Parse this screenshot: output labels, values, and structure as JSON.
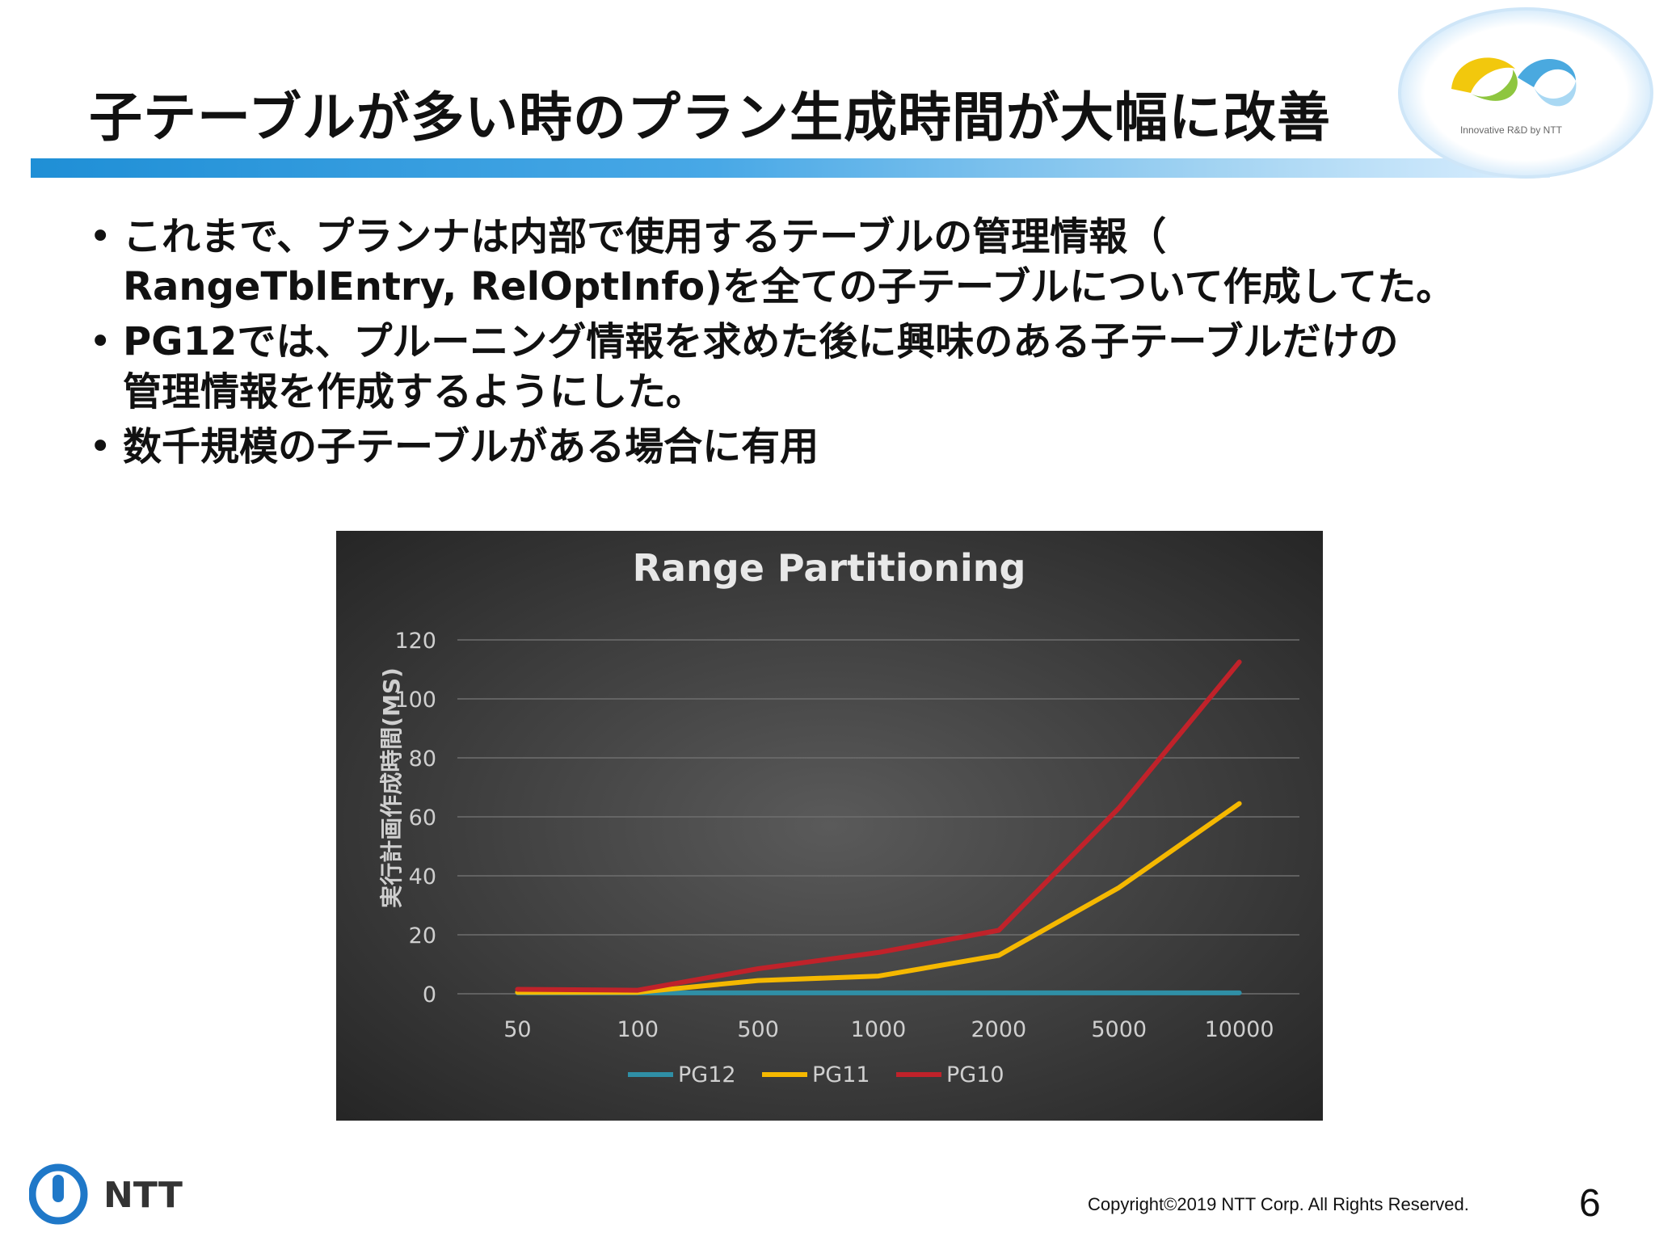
{
  "slide": {
    "title": "子テーブルが多い時のプラン生成時間が大幅に改善",
    "bullets": [
      {
        "lines": [
          "これまで、プランナは内部で使用するテーブルの管理情報（",
          "RangeTblEntry, RelOptInfo)を全ての子テーブルについて作成してた。"
        ]
      },
      {
        "lines": [
          "PG12では、プルーニング情報を求めた後に興味のある子テーブルだけの",
          "管理情報を作成するようにした。"
        ]
      },
      {
        "lines": [
          "数千規模の子テーブルがある場合に有用"
        ]
      }
    ],
    "logo_text": "Innovative R&D by NTT",
    "brand": "NTT",
    "copyright": "Copyright©2019  NTT Corp. All Rights Reserved.",
    "page_number": "6"
  },
  "chart_data": {
    "type": "line",
    "title": "Range Partitioning",
    "xlabel": "",
    "ylabel": "実行計画作成時間(MS)",
    "categories": [
      "50",
      "100",
      "500",
      "1000",
      "2000",
      "5000",
      "10000"
    ],
    "ylim": [
      0,
      120
    ],
    "yticks": [
      0,
      20,
      40,
      60,
      80,
      100,
      120
    ],
    "grid": true,
    "legend_position": "bottom",
    "series": [
      {
        "name": "PG12",
        "color": "#2f8fa6",
        "values": [
          0.3,
          0.3,
          0.3,
          0.3,
          0.3,
          0.3,
          0.3
        ]
      },
      {
        "name": "PG11",
        "color": "#f5b800",
        "values": [
          0.5,
          0.5,
          4.5,
          6,
          13,
          36,
          64.5
        ]
      },
      {
        "name": "PG10",
        "color": "#c0222a",
        "values": [
          1.5,
          1.2,
          8.5,
          14,
          21.5,
          63,
          112.5
        ]
      }
    ]
  }
}
